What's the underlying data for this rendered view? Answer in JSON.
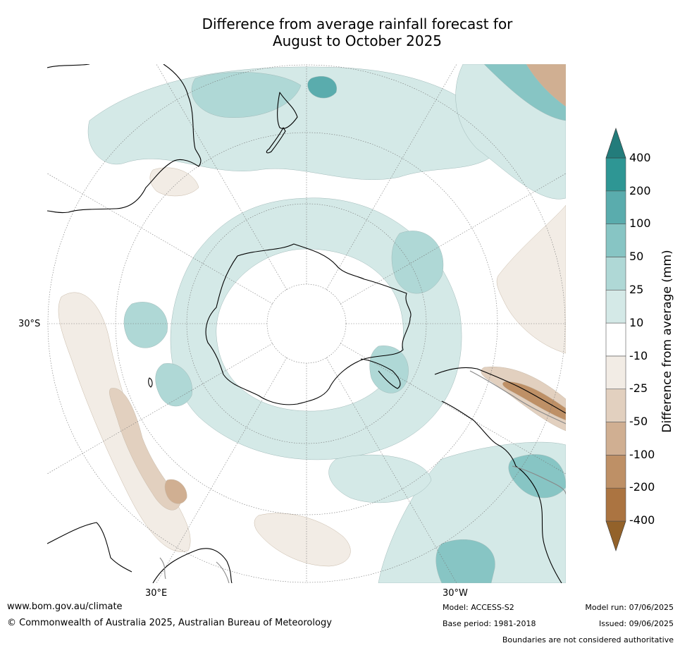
{
  "title_line1": "Difference from average rainfall forecast for",
  "title_line2": "August to October 2025",
  "map": {
    "projection": "south-polar-stereographic",
    "graticule_labels": [
      "30°S",
      "30°E",
      "30°W"
    ],
    "continent_outline_color": "#000000",
    "border_outline_color": "#888888",
    "ocean_neutral_color": "#ffffff"
  },
  "colorbar": {
    "label": "Difference from average (mm)",
    "tick_labels": [
      "400",
      "200",
      "100",
      "50",
      "25",
      "10",
      "-10",
      "-25",
      "-50",
      "-100",
      "-200",
      "-400"
    ],
    "colors": [
      "#93622a",
      "#ab7441",
      "#be9066",
      "#d0af92",
      "#e2d0bf",
      "#f2ece5",
      "#ffffff",
      "#d4e9e7",
      "#afd8d6",
      "#87c5c4",
      "#5aacad",
      "#2e9694",
      "#237c7b"
    ],
    "extend": "both"
  },
  "footer": {
    "website": "www.bom.gov.au/climate",
    "copyright": "© Commonwealth of Australia 2025, Australian Bureau of Meteorology",
    "model": "Model: ACCESS-S2",
    "base_period": "Base period: 1981-2018",
    "model_run": "Model run: 07/06/2025",
    "issued": "Issued: 09/06/2025",
    "disclaimer": "Boundaries are not considered authoritative"
  }
}
